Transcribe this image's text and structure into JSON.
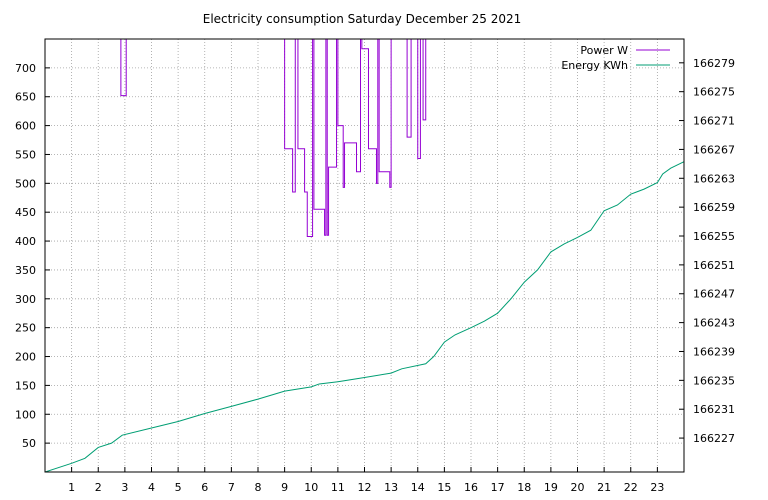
{
  "chart_data": {
    "type": "line",
    "title": "Electricity consumption Saturday December 25 2021",
    "xlabel": "",
    "ylabel": "",
    "y2label": "",
    "grid": true,
    "legend_placement": "top-right",
    "x_ticks": [
      1,
      2,
      3,
      4,
      5,
      6,
      7,
      8,
      9,
      10,
      11,
      12,
      13,
      14,
      15,
      16,
      17,
      18,
      19,
      20,
      21,
      22,
      23
    ],
    "xlim": [
      0,
      24
    ],
    "y_ticks": [
      50,
      100,
      150,
      200,
      250,
      300,
      350,
      400,
      450,
      500,
      550,
      600,
      650,
      700
    ],
    "ylim": [
      0,
      750
    ],
    "y2_ticks": [
      166227,
      166231,
      166235,
      166239,
      166243,
      166247,
      166251,
      166255,
      166259,
      166263,
      166267,
      166271,
      166275,
      166279
    ],
    "y2lim": [
      166222.3,
      166282.3
    ],
    "series": [
      {
        "name": "Power W",
        "axis": "left",
        "color": "#9400d3",
        "step": true,
        "points": [
          [
            2.85,
            750
          ],
          [
            2.85,
            652
          ],
          [
            3.05,
            652
          ],
          [
            3.05,
            750
          ],
          [
            9.0,
            750
          ],
          [
            9.0,
            560
          ],
          [
            9.3,
            560
          ],
          [
            9.3,
            485
          ],
          [
            9.4,
            485
          ],
          [
            9.4,
            750
          ],
          [
            9.5,
            750
          ],
          [
            9.5,
            560
          ],
          [
            9.75,
            560
          ],
          [
            9.75,
            485
          ],
          [
            9.85,
            485
          ],
          [
            9.85,
            408
          ],
          [
            10.05,
            408
          ],
          [
            10.05,
            750
          ],
          [
            10.1,
            750
          ],
          [
            10.1,
            455
          ],
          [
            10.5,
            455
          ],
          [
            10.5,
            410
          ],
          [
            10.55,
            410
          ],
          [
            10.55,
            750
          ],
          [
            10.6,
            750
          ],
          [
            10.6,
            410
          ],
          [
            10.65,
            410
          ],
          [
            10.65,
            528
          ],
          [
            10.95,
            528
          ],
          [
            10.95,
            750
          ],
          [
            11.0,
            750
          ],
          [
            11.0,
            600
          ],
          [
            11.2,
            600
          ],
          [
            11.2,
            493
          ],
          [
            11.25,
            493
          ],
          [
            11.25,
            570
          ],
          [
            11.7,
            570
          ],
          [
            11.7,
            520
          ],
          [
            11.85,
            520
          ],
          [
            11.85,
            750
          ],
          [
            11.9,
            750
          ],
          [
            11.9,
            733
          ],
          [
            12.15,
            733
          ],
          [
            12.15,
            560
          ],
          [
            12.45,
            560
          ],
          [
            12.45,
            500
          ],
          [
            12.5,
            500
          ],
          [
            12.5,
            750
          ],
          [
            12.55,
            750
          ],
          [
            12.55,
            520
          ],
          [
            12.95,
            520
          ],
          [
            12.95,
            493
          ],
          [
            13.0,
            493
          ],
          [
            13.0,
            750
          ],
          [
            13.6,
            750
          ],
          [
            13.6,
            580
          ],
          [
            13.75,
            580
          ],
          [
            13.75,
            750
          ],
          [
            14.0,
            750
          ],
          [
            14.0,
            543
          ],
          [
            14.1,
            543
          ],
          [
            14.1,
            750
          ],
          [
            14.2,
            750
          ],
          [
            14.2,
            610
          ],
          [
            14.3,
            610
          ],
          [
            14.3,
            750
          ]
        ]
      },
      {
        "name": "Energy KWh",
        "axis": "right",
        "color": "#009e73",
        "step": false,
        "points": [
          [
            0.0,
            166222.3
          ],
          [
            1.0,
            166223.5
          ],
          [
            1.5,
            166224.2
          ],
          [
            2.0,
            166225.7
          ],
          [
            2.5,
            166226.3
          ],
          [
            2.9,
            166227.4
          ],
          [
            4.0,
            166228.4
          ],
          [
            5.0,
            166229.3
          ],
          [
            6.0,
            166230.4
          ],
          [
            7.0,
            166231.4
          ],
          [
            8.0,
            166232.4
          ],
          [
            9.0,
            166233.5
          ],
          [
            10.0,
            166234.1
          ],
          [
            10.3,
            166234.5
          ],
          [
            11.0,
            166234.8
          ],
          [
            12.0,
            166235.4
          ],
          [
            13.0,
            166236.0
          ],
          [
            13.4,
            166236.6
          ],
          [
            14.3,
            166237.3
          ],
          [
            14.6,
            166238.3
          ],
          [
            15.0,
            166240.3
          ],
          [
            15.4,
            166241.3
          ],
          [
            16.0,
            166242.3
          ],
          [
            16.5,
            166243.2
          ],
          [
            17.0,
            166244.3
          ],
          [
            17.5,
            166246.3
          ],
          [
            18.0,
            166248.6
          ],
          [
            18.5,
            166250.3
          ],
          [
            19.0,
            166252.8
          ],
          [
            19.5,
            166253.9
          ],
          [
            20.0,
            166254.8
          ],
          [
            20.5,
            166255.8
          ],
          [
            21.0,
            166258.5
          ],
          [
            21.5,
            166259.3
          ],
          [
            22.0,
            166260.8
          ],
          [
            22.5,
            166261.5
          ],
          [
            23.0,
            166262.4
          ],
          [
            23.2,
            166263.6
          ],
          [
            23.5,
            166264.4
          ],
          [
            24.0,
            166265.3
          ]
        ]
      }
    ]
  }
}
